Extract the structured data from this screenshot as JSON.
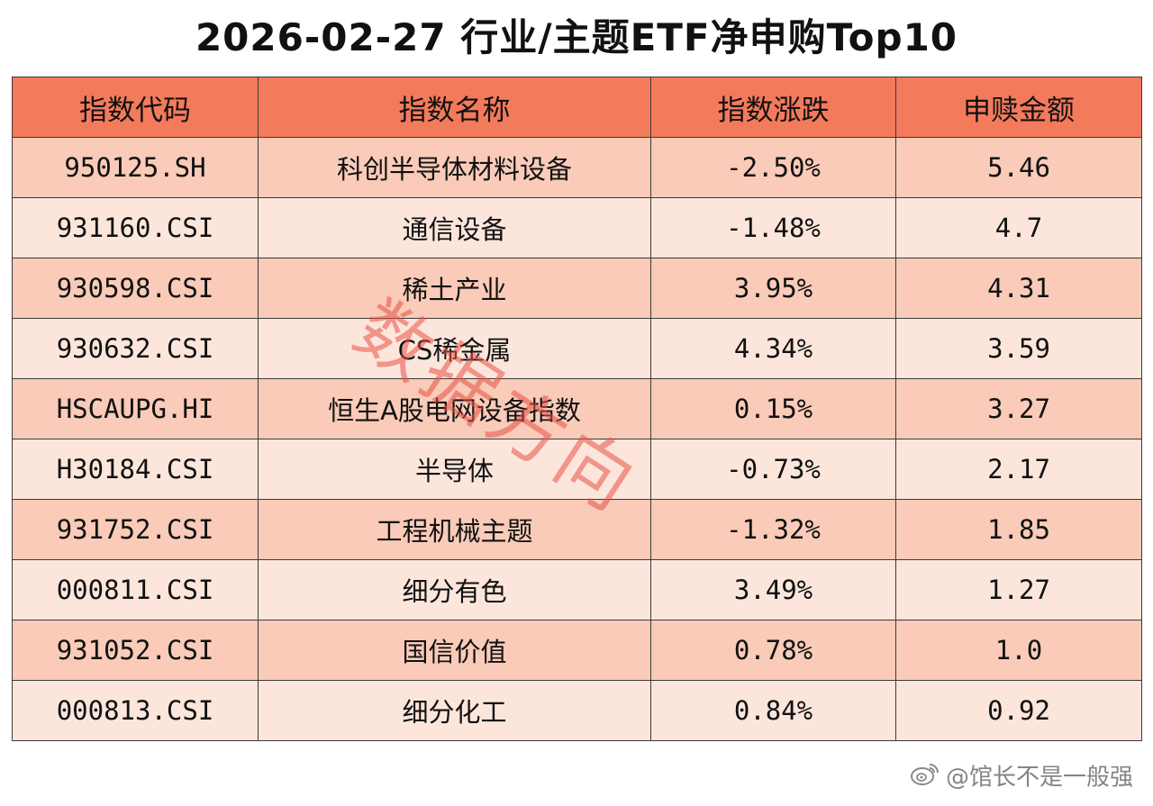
{
  "title": "2026-02-27 行业/主题ETF净申购Top10",
  "watermark": "数据方向",
  "credit": "@馆长不是一般强",
  "icons": [
    "weibo-logo-icon"
  ],
  "colors": {
    "header_bg": "#F47A5C",
    "row_odd_bg": "#F9CBB8",
    "row_even_bg": "#FCE6DC",
    "border": "#3a3a3a",
    "watermark": "#E85046"
  },
  "chart_data": {
    "type": "table",
    "columns": [
      "指数代码",
      "指数名称",
      "指数涨跌",
      "申赎金额"
    ],
    "rows": [
      [
        "950125.SH",
        "科创半导体材料设备",
        "-2.50%",
        "5.46"
      ],
      [
        "931160.CSI",
        "通信设备",
        "-1.48%",
        "4.7"
      ],
      [
        "930598.CSI",
        "稀土产业",
        "3.95%",
        "4.31"
      ],
      [
        "930632.CSI",
        "CS稀金属",
        "4.34%",
        "3.59"
      ],
      [
        "HSCAUPG.HI",
        "恒生A股电网设备指数",
        "0.15%",
        "3.27"
      ],
      [
        "H30184.CSI",
        "半导体",
        "-0.73%",
        "2.17"
      ],
      [
        "931752.CSI",
        "工程机械主题",
        "-1.32%",
        "1.85"
      ],
      [
        "000811.CSI",
        "细分有色",
        "3.49%",
        "1.27"
      ],
      [
        "931052.CSI",
        "国信价值",
        "0.78%",
        "1.0"
      ],
      [
        "000813.CSI",
        "细分化工",
        "0.84%",
        "0.92"
      ]
    ]
  }
}
